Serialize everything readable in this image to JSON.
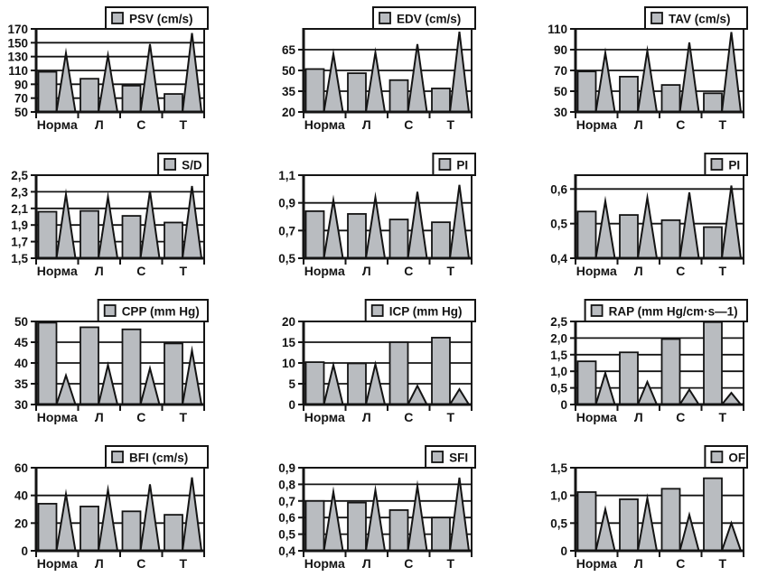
{
  "page": {
    "background": "#ffffff"
  },
  "colors": {
    "bar_fill": "#b9bcc0",
    "stroke": "#141414",
    "legend_bg": "#ffffff",
    "text": "#141414"
  },
  "chart_data": [
    {
      "type": "bar",
      "legend": "PSV (cm/s)",
      "categories": [
        "Норма",
        "Л",
        "С",
        "Т"
      ],
      "series": [
        {
          "name": "mean-bar",
          "values": [
            108,
            98,
            88,
            76
          ]
        },
        {
          "name": "spike",
          "values": [
            135,
            132,
            148,
            164
          ]
        }
      ],
      "ymin": 50,
      "ymax": 170,
      "yticks": [
        50,
        70,
        90,
        110,
        130,
        150,
        170
      ],
      "ytick_labels": [
        "50",
        "70",
        "90",
        "110",
        "130",
        "150",
        "170"
      ]
    },
    {
      "type": "bar",
      "legend": "EDV (cm/s)",
      "categories": [
        "Норма",
        "Л",
        "С",
        "Т"
      ],
      "series": [
        {
          "name": "mean-bar",
          "values": [
            51,
            48,
            43,
            37
          ]
        },
        {
          "name": "spike",
          "values": [
            62,
            63,
            69,
            78
          ]
        }
      ],
      "ymin": 20,
      "ymax": 80,
      "yticks": [
        20,
        35,
        50,
        65
      ],
      "ytick_labels": [
        "20",
        "35",
        "50",
        "65"
      ]
    },
    {
      "type": "bar",
      "legend": "TAV (cm/s)",
      "categories": [
        "Норма",
        "Л",
        "С",
        "Т"
      ],
      "series": [
        {
          "name": "mean-bar",
          "values": [
            69,
            64,
            56,
            48
          ]
        },
        {
          "name": "spike",
          "values": [
            87,
            89,
            97,
            107
          ]
        }
      ],
      "ymin": 30,
      "ymax": 110,
      "yticks": [
        30,
        50,
        70,
        90,
        110
      ],
      "ytick_labels": [
        "30",
        "50",
        "70",
        "90",
        "110"
      ]
    },
    {
      "type": "bar",
      "legend": "S/D",
      "categories": [
        "Норма",
        "Л",
        "С",
        "Т"
      ],
      "series": [
        {
          "name": "mean-bar",
          "values": [
            2.06,
            2.07,
            2.01,
            1.93
          ]
        },
        {
          "name": "spike",
          "values": [
            2.27,
            2.24,
            2.31,
            2.37
          ]
        }
      ],
      "ymin": 1.5,
      "ymax": 2.5,
      "yticks": [
        1.5,
        1.7,
        1.9,
        2.1,
        2.3,
        2.5
      ],
      "ytick_labels": [
        "1,5",
        "1,7",
        "1,9",
        "2,1",
        "2,3",
        "2,5"
      ]
    },
    {
      "type": "bar",
      "legend": "PI",
      "categories": [
        "Норма",
        "Л",
        "С",
        "Т"
      ],
      "series": [
        {
          "name": "mean-bar",
          "values": [
            0.84,
            0.82,
            0.78,
            0.76
          ]
        },
        {
          "name": "spike",
          "values": [
            0.92,
            0.94,
            0.98,
            1.03
          ]
        }
      ],
      "ymin": 0.5,
      "ymax": 1.1,
      "yticks": [
        0.5,
        0.7,
        0.9,
        1.1
      ],
      "ytick_labels": [
        "0,5",
        "0,7",
        "0,9",
        "1,1"
      ]
    },
    {
      "type": "bar",
      "legend": "PI",
      "categories": [
        "Норма",
        "Л",
        "С",
        "Т"
      ],
      "series": [
        {
          "name": "mean-bar",
          "values": [
            0.535,
            0.525,
            0.51,
            0.49
          ]
        },
        {
          "name": "spike",
          "values": [
            0.565,
            0.575,
            0.59,
            0.61
          ]
        }
      ],
      "ymin": 0.4,
      "ymax": 0.64,
      "yticks": [
        0.4,
        0.5,
        0.6
      ],
      "ytick_labels": [
        "0,4",
        "0,5",
        "0,6"
      ]
    },
    {
      "type": "bar",
      "legend": "CPP (mm Hg)",
      "categories": [
        "Норма",
        "Л",
        "С",
        "Т"
      ],
      "series": [
        {
          "name": "mean-bar",
          "values": [
            49.7,
            48.6,
            48.1,
            44.7
          ]
        },
        {
          "name": "spike",
          "values": [
            37,
            39.5,
            38.7,
            43
          ]
        }
      ],
      "ymin": 30,
      "ymax": 50,
      "yticks": [
        30,
        35,
        40,
        45,
        50
      ],
      "ytick_labels": [
        "30",
        "35",
        "40",
        "45",
        "50"
      ]
    },
    {
      "type": "bar",
      "legend": "ICP (mm Hg)",
      "categories": [
        "Норма",
        "Л",
        "С",
        "Т"
      ],
      "series": [
        {
          "name": "mean-bar",
          "values": [
            10.2,
            9.9,
            15,
            16.1
          ]
        },
        {
          "name": "spike",
          "values": [
            9.5,
            9.7,
            4.5,
            3.7
          ]
        }
      ],
      "ymin": 0,
      "ymax": 20,
      "yticks": [
        0,
        5,
        10,
        15,
        20
      ],
      "ytick_labels": [
        "0",
        "5",
        "10",
        "15",
        "20"
      ]
    },
    {
      "type": "bar",
      "legend": "RAP (mm Hg/cm·s—1)",
      "categories": [
        "Норма",
        "Л",
        "С",
        "Т"
      ],
      "series": [
        {
          "name": "mean-bar",
          "values": [
            1.3,
            1.57,
            1.97,
            2.48
          ]
        },
        {
          "name": "spike",
          "values": [
            0.95,
            0.68,
            0.45,
            0.35
          ]
        }
      ],
      "ymin": 0,
      "ymax": 2.5,
      "yticks": [
        0,
        0.5,
        1.0,
        1.5,
        2.0,
        2.5
      ],
      "ytick_labels": [
        "0",
        "0,5",
        "1,0",
        "1,5",
        "2,0",
        "2,5"
      ]
    },
    {
      "type": "bar",
      "legend": "BFI (cm/s)",
      "categories": [
        "Норма",
        "Л",
        "С",
        "Т"
      ],
      "series": [
        {
          "name": "mean-bar",
          "values": [
            34,
            32,
            28.5,
            26
          ]
        },
        {
          "name": "spike",
          "values": [
            41,
            44,
            48,
            53
          ]
        }
      ],
      "ymin": 0,
      "ymax": 60,
      "yticks": [
        0,
        20,
        40,
        60
      ],
      "ytick_labels": [
        "0",
        "20",
        "40",
        "60"
      ]
    },
    {
      "type": "bar",
      "legend": "SFI",
      "categories": [
        "Норма",
        "Л",
        "С",
        "Т"
      ],
      "series": [
        {
          "name": "mean-bar",
          "values": [
            0.7,
            0.69,
            0.645,
            0.6
          ]
        },
        {
          "name": "spike",
          "values": [
            0.755,
            0.765,
            0.79,
            0.84
          ]
        }
      ],
      "ymin": 0.4,
      "ymax": 0.9,
      "yticks": [
        0.4,
        0.5,
        0.6,
        0.7,
        0.8,
        0.9
      ],
      "ytick_labels": [
        "0,4",
        "0,5",
        "0,6",
        "0,7",
        "0,8",
        "0,9"
      ]
    },
    {
      "type": "bar",
      "legend": "OF",
      "categories": [
        "Норма",
        "Л",
        "С",
        "Т"
      ],
      "series": [
        {
          "name": "mean-bar",
          "values": [
            1.06,
            0.93,
            1.12,
            1.31
          ]
        },
        {
          "name": "spike",
          "values": [
            0.75,
            0.95,
            0.65,
            0.5
          ]
        }
      ],
      "ymin": 0,
      "ymax": 1.5,
      "yticks": [
        0,
        0.5,
        1.0,
        1.5
      ],
      "ytick_labels": [
        "0",
        "0,5",
        "1,0",
        "1,5"
      ]
    }
  ]
}
